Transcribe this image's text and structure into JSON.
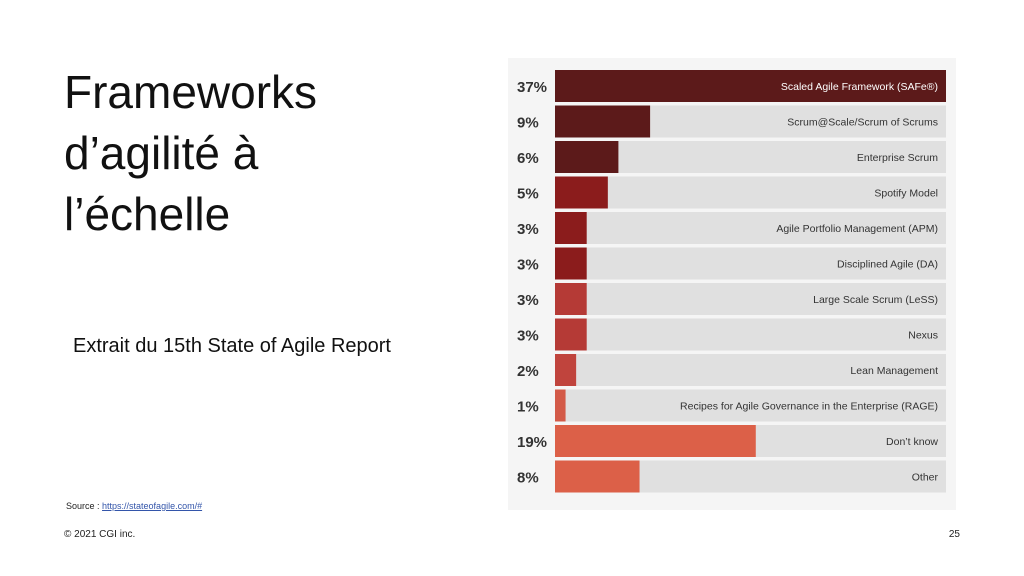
{
  "slide": {
    "title_lines": [
      "Frameworks",
      "d’agilité à",
      "l’échelle"
    ],
    "subtitle": "Extrait du 15th State of Agile Report",
    "source_prefix": "Source : ",
    "source_link": "https://stateofagile.com/#",
    "copyright": "© 2021 CGI inc.",
    "page_number": "25"
  },
  "chart_data": {
    "type": "bar",
    "orientation": "horizontal",
    "xlim": [
      0,
      37
    ],
    "categories": [
      "Scaled Agile Framework (SAFe®)",
      "Scrum@Scale/Scrum of Scrums",
      "Enterprise Scrum",
      "Spotify Model",
      "Agile Portfolio Management (APM)",
      "Disciplined Agile (DA)",
      "Large Scale Scrum (LeSS)",
      "Nexus",
      "Lean Management",
      "Recipes for Agile Governance in the Enterprise (RAGE)",
      "Don’t know",
      "Other"
    ],
    "values": [
      37,
      9,
      6,
      5,
      3,
      3,
      3,
      3,
      2,
      1,
      19,
      8
    ],
    "value_labels": [
      "37%",
      "9%",
      "6%",
      "5%",
      "3%",
      "3%",
      "3%",
      "3%",
      "2%",
      "1%",
      "19%",
      "8%"
    ],
    "colors": [
      "#5c1a1a",
      "#5c1a1a",
      "#5c1a1a",
      "#8b1c1c",
      "#8b1c1c",
      "#8b1c1c",
      "#b53a36",
      "#b53a36",
      "#c0443d",
      "#d35a48",
      "#dc6048",
      "#dc6048"
    ],
    "track_color": "#e0e0e0"
  }
}
